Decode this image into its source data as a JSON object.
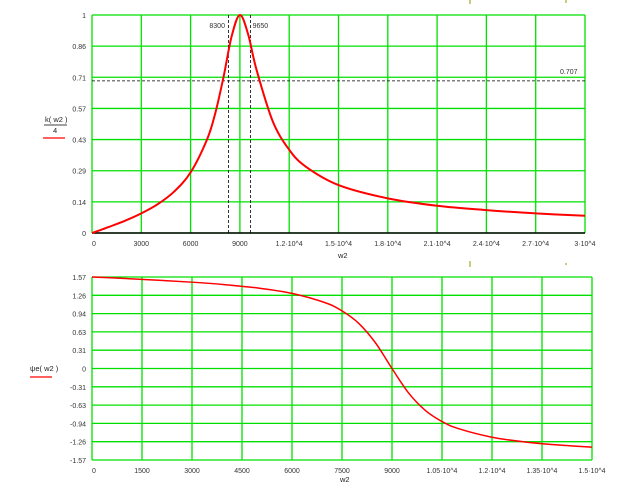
{
  "chart_data": [
    {
      "type": "line",
      "legend": {
        "numerator": "k( w2 )",
        "denominator": "4"
      },
      "xlabel": "w2",
      "xlim": [
        0,
        30000
      ],
      "ylim": [
        0,
        1
      ],
      "grid": true,
      "x_tick_labels": [
        "0",
        "3000",
        "6000",
        "9000",
        "1.2·10^4",
        "1.5·10^4",
        "1.8·10^4",
        "2.1·10^4",
        "2.4·10^4",
        "2.7·10^4",
        "3·10^4"
      ],
      "y_tick_labels": [
        "0",
        "0.14",
        "0.29",
        "0.43",
        "0.57",
        "0.71",
        "0.86",
        "1"
      ],
      "markers": {
        "vertical": [
          {
            "x": 8300,
            "label": "8300"
          },
          {
            "x": 9650,
            "label": "9650"
          }
        ],
        "horizontal": [
          {
            "y": 0.707,
            "label": "0.707"
          }
        ]
      },
      "series": [
        {
          "color": "#ff0000",
          "x": [
            0,
            500,
            1000,
            2000,
            3000,
            4000,
            5000,
            6000,
            7000,
            7500,
            8000,
            8500,
            9000,
            9500,
            10000,
            11000,
            12000,
            13000,
            15000,
            18000,
            21000,
            24000,
            27000,
            30000
          ],
          "y": [
            0,
            0.013,
            0.027,
            0.056,
            0.09,
            0.132,
            0.19,
            0.278,
            0.429,
            0.549,
            0.714,
            0.903,
            1,
            0.912,
            0.752,
            0.512,
            0.382,
            0.305,
            0.22,
            0.159,
            0.125,
            0.105,
            0.09,
            0.079
          ]
        }
      ]
    },
    {
      "type": "line",
      "legend": {
        "label": "ψe( w2 )"
      },
      "xlabel": "w2",
      "xlim": [
        0,
        15000
      ],
      "ylim": [
        -1.57,
        1.57
      ],
      "grid": true,
      "x_tick_labels": [
        "0",
        "1500",
        "3000",
        "4500",
        "6000",
        "7500",
        "9000",
        "1.05·10^4",
        "1.2·10^4",
        "1.35·10^4",
        "1.5·10^4"
      ],
      "y_tick_labels": [
        "1.57",
        "1.26",
        "0.94",
        "0.63",
        "0.31",
        "0",
        "-0.31",
        "-0.63",
        "-0.94",
        "-1.26",
        "-1.57"
      ],
      "series": [
        {
          "color": "#ff0000",
          "x": [
            0,
            1000,
            2000,
            3000,
            4000,
            5000,
            6000,
            7000,
            7500,
            8000,
            8500,
            9000,
            9500,
            10000,
            10500,
            11000,
            12000,
            13000,
            14000,
            15000
          ],
          "y": [
            1.571,
            1.544,
            1.514,
            1.481,
            1.438,
            1.379,
            1.289,
            1.128,
            0.989,
            0.776,
            0.444,
            0,
            -0.422,
            -0.719,
            -0.909,
            -1.033,
            -1.179,
            -1.261,
            -1.313,
            -1.349
          ]
        }
      ]
    }
  ],
  "colors": {
    "grid": "#00e000",
    "curve": "#ff0000",
    "axis": "#000000"
  }
}
